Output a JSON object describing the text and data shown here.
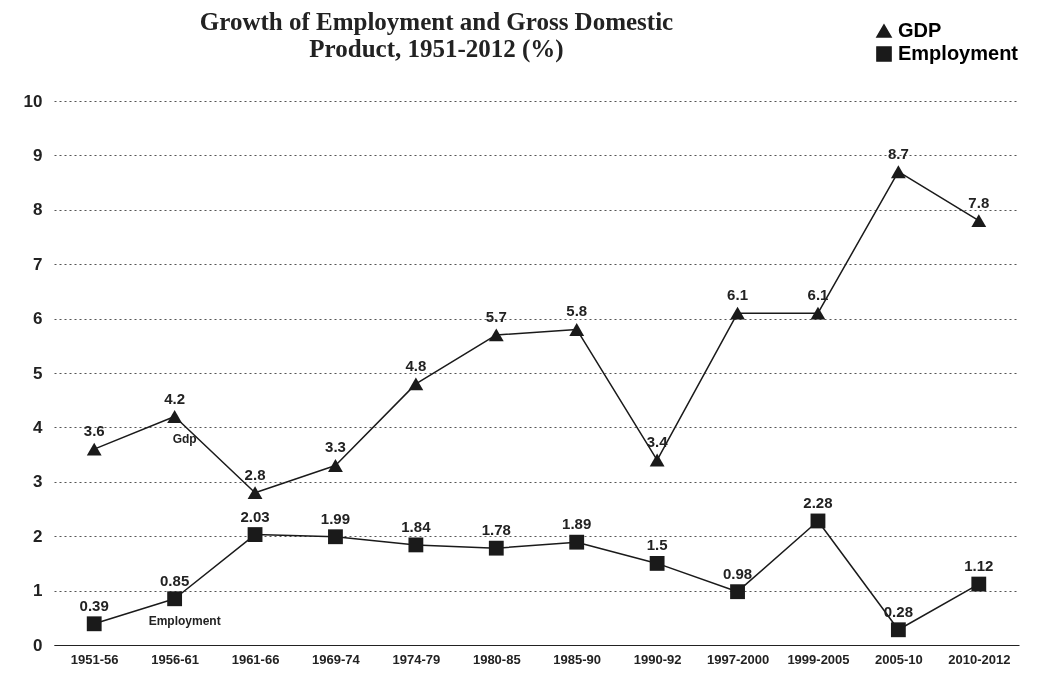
{
  "chart_data": {
    "type": "line",
    "title": "Growth of Employment and Gross Domestic\nProduct, 1951-2012 (%)",
    "categories": [
      "1951-56",
      "1956-61",
      "1961-66",
      "1969-74",
      "1974-79",
      "1980-85",
      "1985-90",
      "1990-92",
      "1997-2000",
      "1999-2005",
      "2005-10",
      "2010-2012"
    ],
    "series": [
      {
        "name": "GDP",
        "color": "#1a1a1a",
        "marker": "triangle",
        "values": [
          3.6,
          4.2,
          2.8,
          3.3,
          4.8,
          5.7,
          5.8,
          3.4,
          6.1,
          6.1,
          8.7,
          7.8
        ]
      },
      {
        "name": "Employment",
        "color": "#1a1a1a",
        "marker": "square",
        "values": [
          0.39,
          0.85,
          2.03,
          1.99,
          1.84,
          1.78,
          1.89,
          1.5,
          0.98,
          2.28,
          0.28,
          1.12
        ]
      }
    ],
    "annotations": [
      "Gdp",
      "Employment"
    ],
    "ylim": [
      0,
      10
    ],
    "yticks": [
      0,
      1,
      2,
      3,
      4,
      5,
      6,
      7,
      8,
      9,
      10
    ],
    "grid": "y",
    "legend": "top right",
    "data_labels": true,
    "line_style": "solid"
  }
}
